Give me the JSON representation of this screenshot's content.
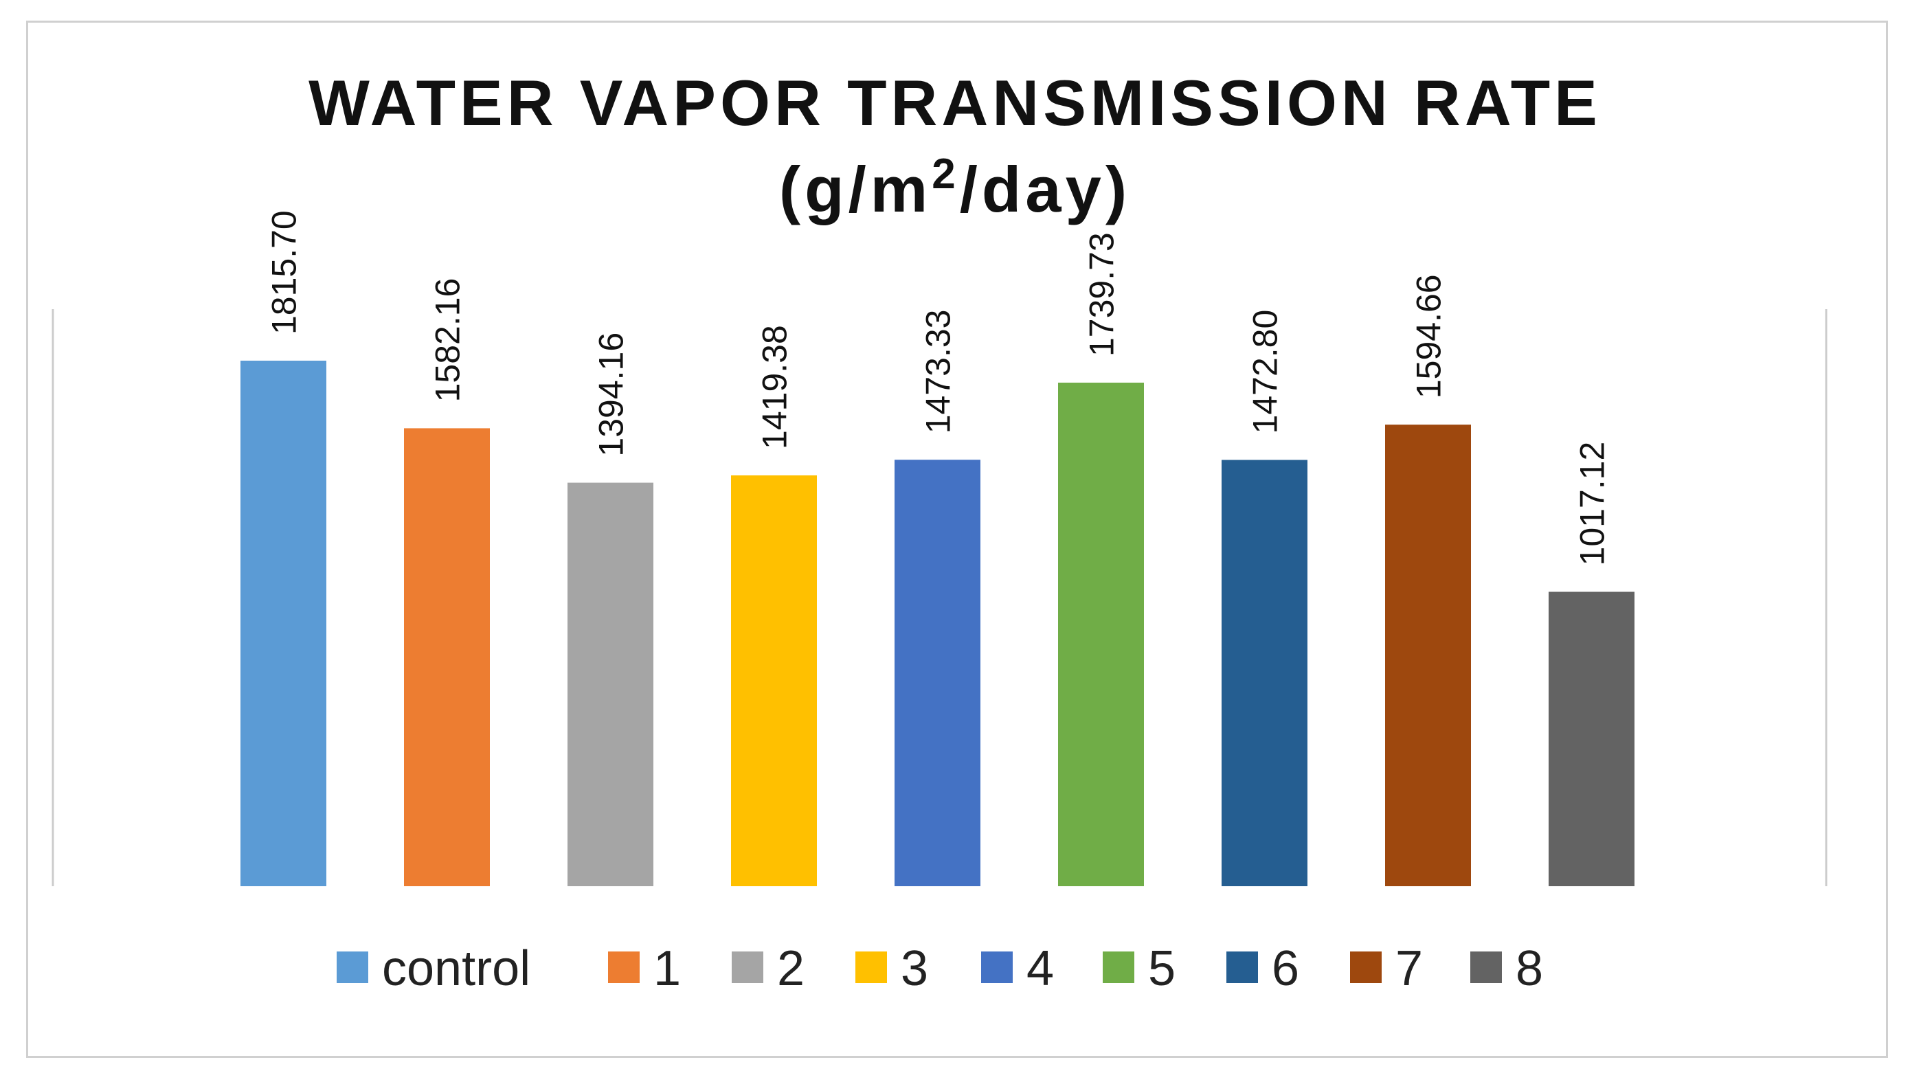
{
  "chart_data": {
    "type": "bar",
    "title": "WATER VAPOR TRANSMISSION RATE",
    "title_line2_prefix": "(g/m",
    "title_line2_sup": "2",
    "title_line2_suffix": "/day)",
    "categories": [
      "control",
      "1",
      "2",
      "3",
      "4",
      "5",
      "6",
      "7",
      "8"
    ],
    "values": [
      1815.7,
      1582.16,
      1394.16,
      1419.38,
      1473.33,
      1739.73,
      1472.8,
      1594.66,
      1017.12
    ],
    "value_labels": [
      "1815.70",
      "1582.16",
      "1394.16",
      "1419.38",
      "1473.33",
      "1739.73",
      "1472.80",
      "1594.66",
      "1017.12"
    ],
    "colors": [
      "#5b9bd5",
      "#ed7d31",
      "#a5a5a5",
      "#ffc000",
      "#4472c4",
      "#70ad47",
      "#255e91",
      "#9e480e",
      "#636363"
    ],
    "ylim": [
      0,
      2000
    ],
    "xlabel": "",
    "ylabel": "",
    "grid": false,
    "legend_position": "bottom"
  }
}
